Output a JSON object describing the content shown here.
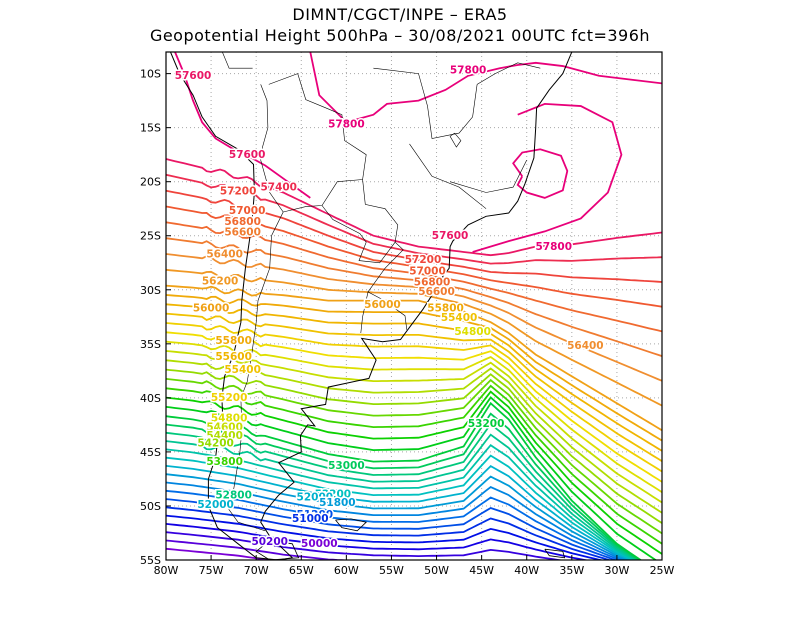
{
  "header": {
    "line1": "DIMNT/CGCT/INPE –  ERA5",
    "line2": "Geopotential Height 500hPa –  30/08/2021 00UTC fct=396h"
  },
  "map": {
    "lon_range": [
      -80,
      -25
    ],
    "lat_range": [
      -55,
      -8
    ],
    "lon_ticks": [
      {
        "v": -80,
        "label": "80W"
      },
      {
        "v": -75,
        "label": "75W"
      },
      {
        "v": -70,
        "label": "70W"
      },
      {
        "v": -65,
        "label": "65W"
      },
      {
        "v": -60,
        "label": "60W"
      },
      {
        "v": -55,
        "label": "55W"
      },
      {
        "v": -50,
        "label": "50W"
      },
      {
        "v": -45,
        "label": "45W"
      },
      {
        "v": -40,
        "label": "40W"
      },
      {
        "v": -35,
        "label": "35W"
      },
      {
        "v": -30,
        "label": "30W"
      },
      {
        "v": -25,
        "label": "25W"
      }
    ],
    "lat_ticks": [
      {
        "v": -10,
        "label": "10S"
      },
      {
        "v": -15,
        "label": "15S"
      },
      {
        "v": -20,
        "label": "20S"
      },
      {
        "v": -25,
        "label": "25S"
      },
      {
        "v": -30,
        "label": "30S"
      },
      {
        "v": -35,
        "label": "35S"
      },
      {
        "v": -40,
        "label": "40S"
      },
      {
        "v": -45,
        "label": "45S"
      },
      {
        "v": -50,
        "label": "50S"
      },
      {
        "v": -55,
        "label": "55S"
      }
    ],
    "grid": "dotted",
    "units": "geopotential height (m x 10)",
    "contour_interval": 200,
    "contour_levels": [
      50000,
      50200,
      50400,
      50600,
      50800,
      51000,
      51200,
      51400,
      51600,
      51800,
      52000,
      52200,
      52400,
      52600,
      52800,
      53000,
      53200,
      53400,
      53600,
      53800,
      54000,
      54200,
      54400,
      54600,
      54800,
      55000,
      55200,
      55400,
      55600,
      55800,
      56000,
      56200,
      56400,
      56600,
      56800,
      57000,
      57200,
      57400,
      57600,
      57800
    ],
    "color_scale": [
      "#7a00d6",
      "#0000e6",
      "#0070e8",
      "#00c0c8",
      "#00c878",
      "#00d000",
      "#a0dc00",
      "#f0e000",
      "#f0b000",
      "#f09030",
      "#f05030",
      "#e8007a"
    ],
    "contour_labels": [
      {
        "text": "57600",
        "lon": -77.0,
        "lat": -10.5
      },
      {
        "text": "57800",
        "lon": -46.5,
        "lat": -10.0
      },
      {
        "text": "57800",
        "lon": -60.0,
        "lat": -15.0
      },
      {
        "text": "57600",
        "lon": -71.0,
        "lat": -17.8
      },
      {
        "text": "57400",
        "lon": -67.5,
        "lat": -20.8
      },
      {
        "text": "57200",
        "lon": -72.0,
        "lat": -21.2
      },
      {
        "text": "57000",
        "lon": -71.0,
        "lat": -23.0
      },
      {
        "text": "56800",
        "lon": -71.5,
        "lat": -24.0
      },
      {
        "text": "56600",
        "lon": -71.5,
        "lat": -25.0
      },
      {
        "text": "57600",
        "lon": -48.5,
        "lat": -25.3
      },
      {
        "text": "57800",
        "lon": -37.0,
        "lat": -26.3
      },
      {
        "text": "56400",
        "lon": -73.5,
        "lat": -27.0
      },
      {
        "text": "57200",
        "lon": -51.5,
        "lat": -27.5
      },
      {
        "text": "57000",
        "lon": -51.0,
        "lat": -28.6
      },
      {
        "text": "56200",
        "lon": -74.0,
        "lat": -29.5
      },
      {
        "text": "56800",
        "lon": -50.5,
        "lat": -29.6
      },
      {
        "text": "56600",
        "lon": -50.0,
        "lat": -30.5
      },
      {
        "text": "56000",
        "lon": -75.0,
        "lat": -32.0
      },
      {
        "text": "56000",
        "lon": -56.0,
        "lat": -31.7
      },
      {
        "text": "55800",
        "lon": -49.0,
        "lat": -32.0
      },
      {
        "text": "55400",
        "lon": -47.5,
        "lat": -32.9
      },
      {
        "text": "54800",
        "lon": -46.0,
        "lat": -34.2
      },
      {
        "text": "55800",
        "lon": -72.5,
        "lat": -35.0
      },
      {
        "text": "56400",
        "lon": -33.5,
        "lat": -35.5
      },
      {
        "text": "55600",
        "lon": -72.5,
        "lat": -36.5
      },
      {
        "text": "55400",
        "lon": -71.5,
        "lat": -37.7
      },
      {
        "text": "55200",
        "lon": -73.0,
        "lat": -40.3
      },
      {
        "text": "54800",
        "lon": -73.0,
        "lat": -42.2
      },
      {
        "text": "54600",
        "lon": -73.5,
        "lat": -43.0
      },
      {
        "text": "54400",
        "lon": -73.5,
        "lat": -43.8
      },
      {
        "text": "54200",
        "lon": -74.5,
        "lat": -44.5
      },
      {
        "text": "53200",
        "lon": -44.5,
        "lat": -42.7
      },
      {
        "text": "53800",
        "lon": -73.5,
        "lat": -46.2
      },
      {
        "text": "53000",
        "lon": -60.0,
        "lat": -46.6
      },
      {
        "text": "52800",
        "lon": -72.5,
        "lat": -49.3
      },
      {
        "text": "52200",
        "lon": -61.5,
        "lat": -49.2
      },
      {
        "text": "52000",
        "lon": -63.5,
        "lat": -49.5
      },
      {
        "text": "52000",
        "lon": -74.5,
        "lat": -50.2
      },
      {
        "text": "51800",
        "lon": -61.0,
        "lat": -50.0
      },
      {
        "text": "51200",
        "lon": -63.5,
        "lat": -51.1
      },
      {
        "text": "51000",
        "lon": -64.0,
        "lat": -51.5
      },
      {
        "text": "50200",
        "lon": -68.5,
        "lat": -53.6
      },
      {
        "text": "50000",
        "lon": -63.0,
        "lat": -53.8
      }
    ]
  }
}
